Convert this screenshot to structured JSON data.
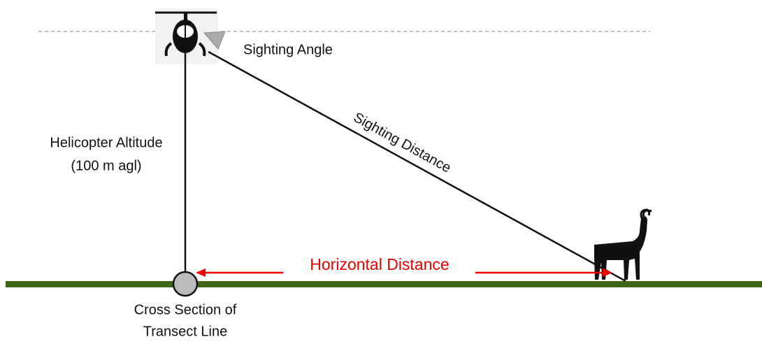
{
  "labels": {
    "sighting_angle": "Sighting Angle",
    "sighting_distance": "Sighting Distance",
    "altitude_line1": "Helicopter Altitude",
    "altitude_line2": "(100 m agl)",
    "horizontal_distance": "Horizontal Distance",
    "transect_line1": "Cross Section of",
    "transect_line2": "Transect Line"
  }
}
